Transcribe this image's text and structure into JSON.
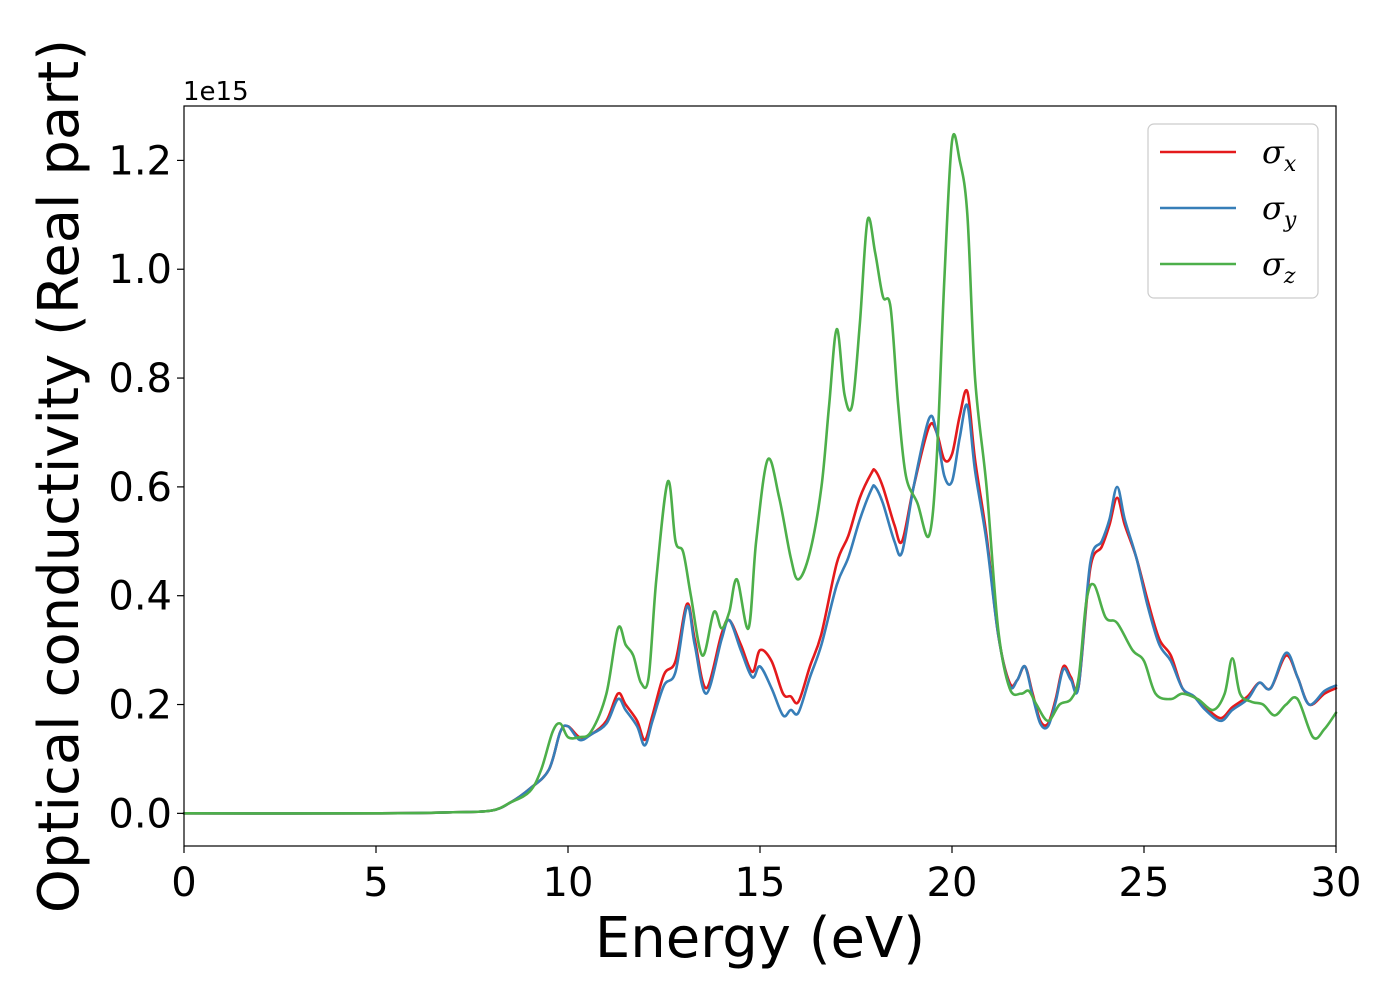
{
  "chart_data": {
    "type": "line",
    "title": "",
    "xlabel": "Energy (eV)",
    "ylabel": "Optical conductivity (Real part)",
    "y_offset_label": "1e15",
    "xlim": [
      0,
      30
    ],
    "ylim": [
      -0.06,
      1.3
    ],
    "xticks": [
      0,
      5,
      10,
      15,
      20,
      25,
      30
    ],
    "xtick_labels": [
      "0",
      "5",
      "10",
      "15",
      "20",
      "25",
      "30"
    ],
    "yticks": [
      0.0,
      0.2,
      0.4,
      0.6,
      0.8,
      1.0,
      1.2
    ],
    "ytick_labels": [
      "0.0",
      "0.2",
      "0.4",
      "0.6",
      "0.8",
      "1.0",
      "1.2"
    ],
    "grid": false,
    "legend_position": "top-right",
    "series": [
      {
        "name": "σx",
        "legend_symbol": "σ",
        "legend_subscript": "x",
        "color": "#e41a1c",
        "x": [
          0,
          5,
          7,
          8,
          8.5,
          9,
          9.5,
          9.8,
          10.0,
          10.3,
          10.6,
          11.0,
          11.3,
          11.5,
          11.8,
          12.0,
          12.2,
          12.5,
          12.8,
          13.1,
          13.3,
          13.6,
          14.0,
          14.2,
          14.5,
          14.8,
          15.0,
          15.3,
          15.6,
          15.8,
          16.0,
          16.3,
          16.6,
          17.0,
          17.3,
          17.6,
          17.9,
          18.0,
          18.2,
          18.5,
          18.7,
          19.0,
          19.4,
          19.6,
          19.8,
          20.0,
          20.2,
          20.4,
          20.6,
          20.9,
          21.2,
          21.5,
          21.7,
          21.9,
          22.1,
          22.3,
          22.5,
          22.7,
          22.9,
          23.1,
          23.3,
          23.6,
          23.9,
          24.1,
          24.3,
          24.5,
          24.8,
          25.1,
          25.4,
          25.7,
          26.0,
          26.3,
          26.6,
          27.0,
          27.3,
          27.7,
          28.0,
          28.3,
          28.7,
          29.0,
          29.3,
          29.7,
          30.0
        ],
        "values": [
          0.0,
          0.0,
          0.002,
          0.005,
          0.02,
          0.045,
          0.08,
          0.15,
          0.16,
          0.14,
          0.145,
          0.17,
          0.22,
          0.2,
          0.17,
          0.135,
          0.18,
          0.255,
          0.28,
          0.385,
          0.32,
          0.23,
          0.33,
          0.355,
          0.31,
          0.26,
          0.3,
          0.28,
          0.22,
          0.215,
          0.205,
          0.27,
          0.33,
          0.46,
          0.51,
          0.58,
          0.625,
          0.63,
          0.6,
          0.53,
          0.5,
          0.6,
          0.71,
          0.7,
          0.65,
          0.66,
          0.73,
          0.775,
          0.65,
          0.51,
          0.33,
          0.24,
          0.245,
          0.27,
          0.22,
          0.17,
          0.165,
          0.21,
          0.27,
          0.25,
          0.235,
          0.45,
          0.49,
          0.53,
          0.58,
          0.53,
          0.47,
          0.39,
          0.32,
          0.29,
          0.23,
          0.215,
          0.195,
          0.175,
          0.195,
          0.215,
          0.24,
          0.23,
          0.29,
          0.25,
          0.2,
          0.22,
          0.23
        ]
      },
      {
        "name": "σy",
        "legend_symbol": "σ",
        "legend_subscript": "y",
        "color": "#377eb8",
        "x": [
          0,
          5,
          7,
          8,
          8.5,
          9,
          9.5,
          9.8,
          10.0,
          10.3,
          10.6,
          11.0,
          11.3,
          11.5,
          11.8,
          12.0,
          12.2,
          12.5,
          12.8,
          13.1,
          13.3,
          13.6,
          14.0,
          14.2,
          14.5,
          14.8,
          15.0,
          15.3,
          15.6,
          15.8,
          16.0,
          16.3,
          16.6,
          17.0,
          17.3,
          17.6,
          17.9,
          18.0,
          18.2,
          18.5,
          18.7,
          19.0,
          19.4,
          19.6,
          19.8,
          20.0,
          20.2,
          20.4,
          20.6,
          20.9,
          21.2,
          21.5,
          21.7,
          21.9,
          22.1,
          22.3,
          22.5,
          22.7,
          22.9,
          23.1,
          23.3,
          23.6,
          23.9,
          24.1,
          24.3,
          24.5,
          24.8,
          25.1,
          25.4,
          25.7,
          26.0,
          26.3,
          26.6,
          27.0,
          27.3,
          27.7,
          28.0,
          28.3,
          28.7,
          29.0,
          29.3,
          29.7,
          30.0
        ],
        "values": [
          0.0,
          0.0,
          0.002,
          0.005,
          0.02,
          0.045,
          0.08,
          0.15,
          0.16,
          0.135,
          0.145,
          0.165,
          0.21,
          0.19,
          0.16,
          0.125,
          0.17,
          0.235,
          0.26,
          0.38,
          0.31,
          0.22,
          0.32,
          0.355,
          0.3,
          0.25,
          0.27,
          0.23,
          0.18,
          0.19,
          0.185,
          0.25,
          0.31,
          0.42,
          0.47,
          0.54,
          0.595,
          0.6,
          0.57,
          0.5,
          0.48,
          0.6,
          0.725,
          0.7,
          0.62,
          0.61,
          0.69,
          0.75,
          0.63,
          0.5,
          0.33,
          0.235,
          0.245,
          0.27,
          0.215,
          0.165,
          0.16,
          0.205,
          0.265,
          0.245,
          0.235,
          0.46,
          0.5,
          0.54,
          0.6,
          0.54,
          0.47,
          0.38,
          0.31,
          0.28,
          0.23,
          0.215,
          0.19,
          0.17,
          0.19,
          0.21,
          0.24,
          0.23,
          0.295,
          0.25,
          0.2,
          0.225,
          0.235
        ]
      },
      {
        "name": "σz",
        "legend_symbol": "σ",
        "legend_subscript": "z",
        "color": "#4daf4a",
        "x": [
          0,
          5,
          7,
          8,
          8.5,
          9,
          9.3,
          9.6,
          9.8,
          10.0,
          10.3,
          10.6,
          11.0,
          11.3,
          11.5,
          11.7,
          11.9,
          12.1,
          12.3,
          12.6,
          12.8,
          13.0,
          13.2,
          13.5,
          13.8,
          14.0,
          14.2,
          14.4,
          14.7,
          14.9,
          15.2,
          15.5,
          15.8,
          16.0,
          16.3,
          16.6,
          16.8,
          17.0,
          17.2,
          17.4,
          17.6,
          17.8,
          18.0,
          18.2,
          18.4,
          18.6,
          18.8,
          19.1,
          19.4,
          19.6,
          19.8,
          20.0,
          20.2,
          20.4,
          20.6,
          20.9,
          21.2,
          21.5,
          21.8,
          22.0,
          22.2,
          22.5,
          22.8,
          23.1,
          23.3,
          23.5,
          23.7,
          24.0,
          24.3,
          24.7,
          25.0,
          25.3,
          25.7,
          26.0,
          26.4,
          26.8,
          27.1,
          27.3,
          27.5,
          27.8,
          28.1,
          28.4,
          28.7,
          29.0,
          29.4,
          29.7,
          30.0
        ],
        "values": [
          0.0,
          0.0,
          0.002,
          0.005,
          0.02,
          0.04,
          0.08,
          0.15,
          0.165,
          0.14,
          0.14,
          0.15,
          0.22,
          0.34,
          0.31,
          0.29,
          0.24,
          0.25,
          0.43,
          0.61,
          0.5,
          0.48,
          0.4,
          0.29,
          0.37,
          0.34,
          0.37,
          0.43,
          0.34,
          0.5,
          0.65,
          0.58,
          0.47,
          0.43,
          0.48,
          0.6,
          0.75,
          0.89,
          0.77,
          0.75,
          0.9,
          1.09,
          1.03,
          0.95,
          0.93,
          0.75,
          0.62,
          0.57,
          0.51,
          0.65,
          0.98,
          1.235,
          1.2,
          1.1,
          0.8,
          0.6,
          0.34,
          0.23,
          0.22,
          0.225,
          0.2,
          0.17,
          0.2,
          0.21,
          0.25,
          0.39,
          0.42,
          0.36,
          0.35,
          0.3,
          0.28,
          0.22,
          0.21,
          0.22,
          0.21,
          0.19,
          0.22,
          0.285,
          0.22,
          0.205,
          0.2,
          0.18,
          0.2,
          0.21,
          0.14,
          0.155,
          0.185
        ]
      }
    ]
  }
}
